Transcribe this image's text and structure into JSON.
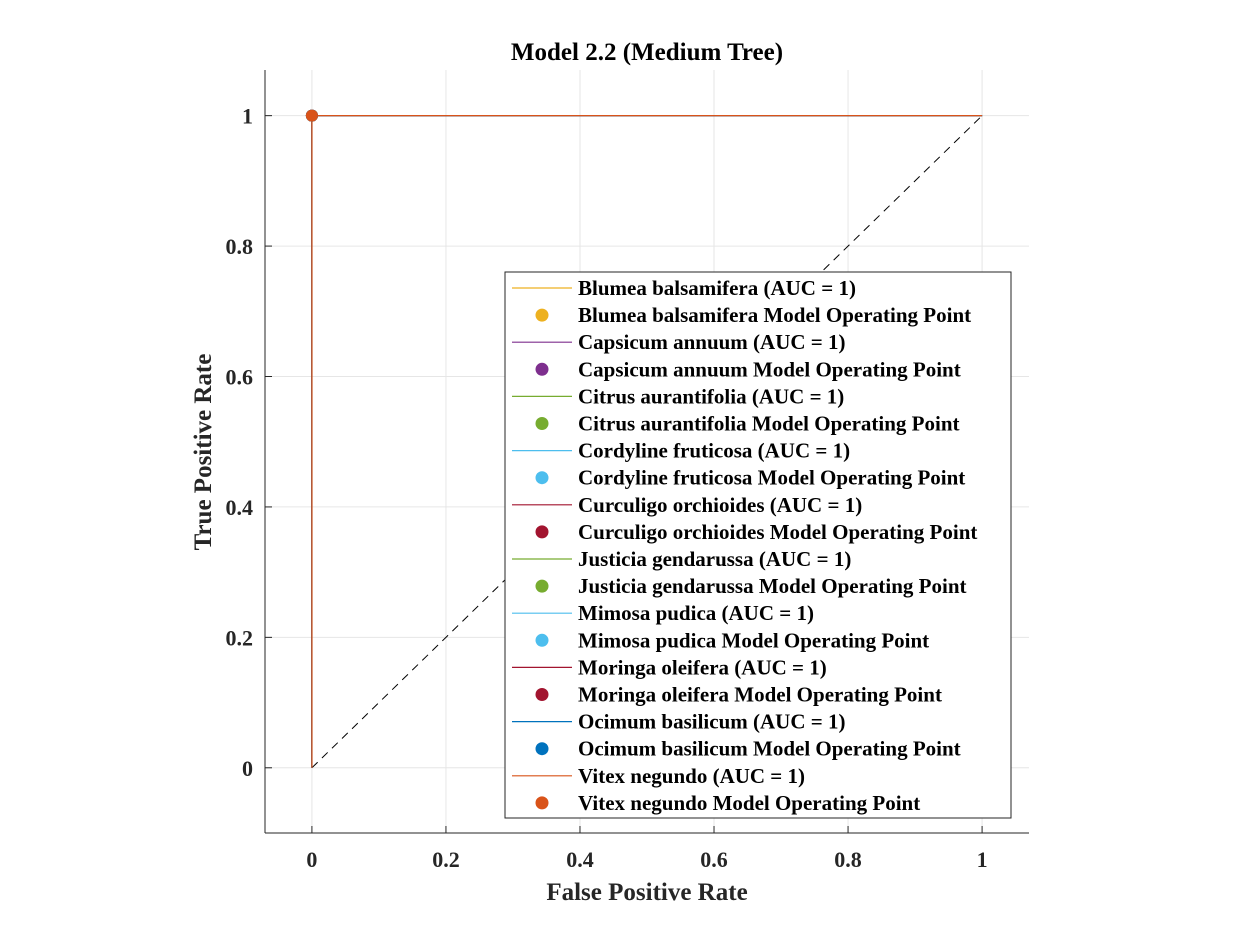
{
  "chart_data": {
    "type": "line",
    "title": "Model 2.2 (Medium Tree)",
    "xlabel": "False Positive Rate",
    "ylabel": "True Positive Rate",
    "xlim": [
      -0.07,
      1.07
    ],
    "ylim": [
      -0.1,
      1.07
    ],
    "xticks": [
      0,
      0.2,
      0.4,
      0.6,
      0.8,
      1
    ],
    "xtick_labels": [
      "0",
      "0.2",
      "0.4",
      "0.6",
      "0.8",
      "1"
    ],
    "yticks": [
      0,
      0.2,
      0.4,
      0.6,
      0.8,
      1
    ],
    "ytick_labels": [
      "0",
      "0.2",
      "0.4",
      "0.6",
      "0.8",
      "1"
    ],
    "grid": true,
    "legend_position": "inside lower-right",
    "reference_line": {
      "x": [
        0,
        1
      ],
      "y": [
        0,
        1
      ],
      "color": "#000000",
      "style": "dashed"
    },
    "series": [
      {
        "name": "Blumea balsamifera (AUC = 1)",
        "color": "#EDB120",
        "x": [
          0,
          0,
          1
        ],
        "y": [
          0,
          1,
          1
        ],
        "point_name": "Blumea balsamifera Model Operating Point",
        "operating_point": [
          0,
          1
        ]
      },
      {
        "name": "Capsicum annuum (AUC = 1)",
        "color": "#7E2F8E",
        "x": [
          0,
          0,
          1
        ],
        "y": [
          0,
          1,
          1
        ],
        "point_name": "Capsicum annuum Model Operating Point",
        "operating_point": [
          0,
          1
        ]
      },
      {
        "name": "Citrus aurantifolia (AUC = 1)",
        "color": "#77AC30",
        "x": [
          0,
          0,
          1
        ],
        "y": [
          0,
          1,
          1
        ],
        "point_name": "Citrus aurantifolia Model Operating Point",
        "operating_point": [
          0,
          1
        ]
      },
      {
        "name": "Cordyline fruticosa (AUC = 1)",
        "color": "#4DBEEE",
        "x": [
          0,
          0,
          1
        ],
        "y": [
          0,
          1,
          1
        ],
        "point_name": "Cordyline fruticosa Model Operating Point",
        "operating_point": [
          0,
          1
        ]
      },
      {
        "name": "Curculigo orchioides (AUC = 1)",
        "color": "#A2142F",
        "x": [
          0,
          0,
          1
        ],
        "y": [
          0,
          1,
          1
        ],
        "point_name": "Curculigo orchioides Model Operating Point",
        "operating_point": [
          0,
          1
        ]
      },
      {
        "name": "Justicia gendarussa (AUC = 1)",
        "color": "#77AC30",
        "x": [
          0,
          0,
          1
        ],
        "y": [
          0,
          1,
          1
        ],
        "point_name": "Justicia gendarussa Model Operating Point",
        "operating_point": [
          0,
          1
        ]
      },
      {
        "name": "Mimosa pudica (AUC = 1)",
        "color": "#4DBEEE",
        "x": [
          0,
          0,
          1
        ],
        "y": [
          0,
          1,
          1
        ],
        "point_name": "Mimosa pudica Model Operating Point",
        "operating_point": [
          0,
          1
        ]
      },
      {
        "name": "Moringa oleifera (AUC = 1)",
        "color": "#A2142F",
        "x": [
          0,
          0,
          1
        ],
        "y": [
          0,
          1,
          1
        ],
        "point_name": "Moringa oleifera Model Operating Point",
        "operating_point": [
          0,
          1
        ]
      },
      {
        "name": "Ocimum basilicum (AUC = 1)",
        "color": "#0072BD",
        "x": [
          0,
          0,
          1
        ],
        "y": [
          0,
          1,
          1
        ],
        "point_name": "Ocimum basilicum Model Operating Point",
        "operating_point": [
          0,
          1
        ]
      },
      {
        "name": "Vitex negundo (AUC = 1)",
        "color": "#D95319",
        "x": [
          0,
          0,
          1
        ],
        "y": [
          0,
          1,
          1
        ],
        "point_name": "Vitex negundo Model Operating Point",
        "operating_point": [
          0,
          1
        ]
      }
    ]
  }
}
